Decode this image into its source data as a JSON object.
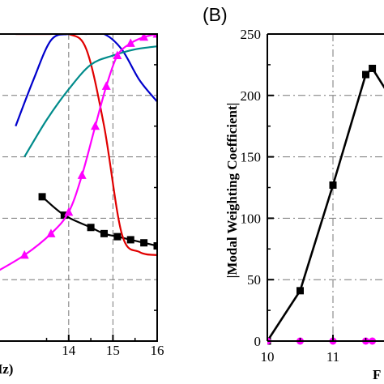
{
  "chart_data": [
    {
      "type": "line",
      "panel": "A",
      "xlabel_partial": "Hz)",
      "x_ticks": [
        "14",
        "15",
        "16"
      ],
      "xlim": [
        12.3,
        16
      ],
      "ylim": [
        0,
        1
      ],
      "grid": true,
      "series": [
        {
          "color": "#000000",
          "marker": "square",
          "x": [
            13.4,
            13.9,
            14.5,
            14.8,
            15.1,
            15.4,
            15.7,
            16.0
          ],
          "y": [
            0.47,
            0.41,
            0.37,
            0.35,
            0.34,
            0.33,
            0.32,
            0.31
          ]
        },
        {
          "color": "#0000cc",
          "x": [
            12.8,
            13.2,
            13.6,
            14.0,
            14.4,
            14.8,
            15.2,
            15.6,
            16.0
          ],
          "y": [
            0.7,
            0.85,
            0.98,
            1.0,
            1.0,
            1.0,
            0.95,
            0.85,
            0.78
          ]
        },
        {
          "color": "#e00000",
          "x": [
            12.8,
            13.2,
            13.6,
            14.0,
            14.4,
            14.8,
            15.2,
            15.6,
            16.0
          ],
          "y": [
            1.0,
            1.0,
            1.0,
            1.0,
            0.95,
            0.7,
            0.35,
            0.29,
            0.28
          ]
        },
        {
          "color": "#008b8b",
          "x": [
            13.0,
            13.5,
            14.0,
            14.5,
            15.0,
            15.5,
            16.0
          ],
          "y": [
            0.6,
            0.72,
            0.82,
            0.9,
            0.93,
            0.95,
            0.96
          ]
        },
        {
          "color": "#ff00ff",
          "marker": "triangle",
          "x": [
            12.3,
            13.0,
            13.6,
            14.0,
            14.3,
            14.6,
            14.85,
            15.1,
            15.4,
            15.7,
            16.0
          ],
          "y": [
            0.22,
            0.28,
            0.35,
            0.42,
            0.54,
            0.7,
            0.83,
            0.93,
            0.97,
            0.99,
            1.0
          ]
        }
      ]
    },
    {
      "type": "line",
      "panel": "B",
      "ylabel": "|Modal Weighting Coefficient|",
      "xlabel_partial": "F",
      "x_ticks": [
        10,
        11
      ],
      "y_ticks": [
        0,
        50,
        100,
        150,
        200,
        250
      ],
      "xlim": [
        10,
        11.8
      ],
      "ylim": [
        0,
        250
      ],
      "grid": true,
      "series": [
        {
          "color": "#000000",
          "marker": "square",
          "x": [
            10.0,
            10.5,
            11.0,
            11.5,
            11.6,
            11.8
          ],
          "y": [
            0,
            41,
            127,
            217,
            222,
            205
          ]
        },
        {
          "color": "#ff00ff",
          "marker": "circle",
          "x": [
            10.0,
            10.5,
            11.0,
            11.5,
            11.6
          ],
          "y": [
            0,
            0,
            0,
            0,
            0
          ]
        }
      ]
    }
  ],
  "labels": {
    "panel_b": "(B)",
    "panel_a_xlabel": "Hz)",
    "panel_b_xlabel": "F",
    "panel_b_ylabel": "|Modal Weighting Coefficient|"
  }
}
